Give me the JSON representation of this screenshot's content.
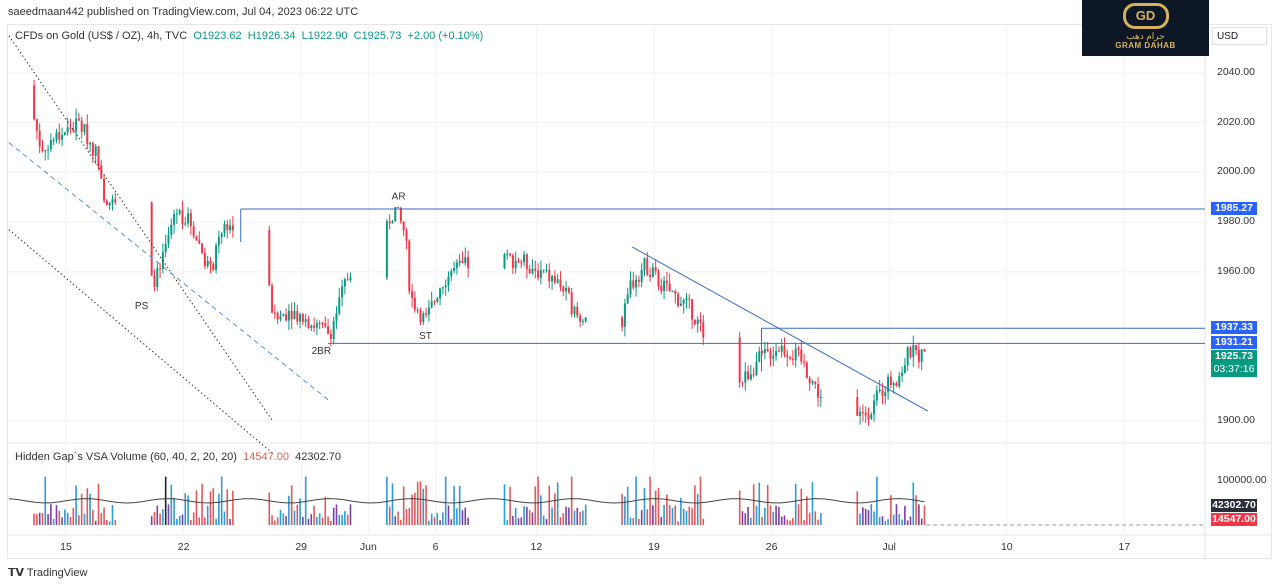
{
  "header": {
    "publisher": "saeedmaan442 published on TradingView.com, Jul 04, 2023 06:22 UTC"
  },
  "legend": {
    "symbol": "CFDs on Gold (US$ / OZ), 4h, TVC",
    "open": "O1923.62",
    "high": "H1926.34",
    "low": "L1922.90",
    "close": "C1925.73",
    "change": "+2.00 (+0.10%)"
  },
  "volume_legend": {
    "name": "Hidden Gap`s VSA Volume (60, 40, 2, 20, 20)",
    "val1": "14547.00",
    "val2": "42302.70"
  },
  "logo": {
    "arabic": "جرام دهب",
    "english": "GRAM DAHAB",
    "mark": "GD"
  },
  "scale": {
    "currency": "USD"
  },
  "colors": {
    "up": "#089981",
    "down": "#f23645",
    "line": "#2962ff",
    "vol_up": "#2e9bd6",
    "vol_down": "#e05a5a",
    "vol_purple": "#7b3fa0"
  },
  "footer": {
    "brand": "TradingView",
    "brand_icon": "tradingview-logo-icon"
  },
  "chart_data": {
    "type": "candlestick",
    "ylim": [
      1886,
      2046
    ],
    "y_ticks": [
      "2040.00",
      "2020.00",
      "2000.00",
      "1980.00",
      "1960.00",
      "1900.00"
    ],
    "y_tick_values": [
      2040,
      2020,
      2000,
      1980,
      1960,
      1900
    ],
    "x_ticks": [
      {
        "label": "15",
        "day": 0
      },
      {
        "label": "22",
        "day": 7
      },
      {
        "label": "29",
        "day": 14
      },
      {
        "label": "Jun",
        "day": 18
      },
      {
        "label": "6",
        "day": 22
      },
      {
        "label": "12",
        "day": 28
      },
      {
        "label": "19",
        "day": 35
      },
      {
        "label": "26",
        "day": 42
      },
      {
        "label": "Jul",
        "day": 49
      },
      {
        "label": "10",
        "day": 56
      },
      {
        "label": "17",
        "day": 63
      }
    ],
    "xlim_days": [
      -3.4,
      69
    ],
    "price_path": [
      [
        -3.4,
        2035
      ],
      [
        -2.2,
        2030
      ],
      [
        -1.5,
        2010
      ],
      [
        -0.4,
        2015
      ],
      [
        0.8,
        2020
      ],
      [
        2,
        2005
      ],
      [
        2.3,
        1990
      ],
      [
        3.2,
        1985
      ],
      [
        4.7,
        1975
      ],
      [
        5,
        1955
      ],
      [
        5.6,
        1960
      ],
      [
        6.5,
        1985
      ],
      [
        7.4,
        1980
      ],
      [
        8.6,
        1960
      ],
      [
        9.5,
        1980
      ],
      [
        10.4,
        1975
      ],
      [
        11,
        1955
      ],
      [
        11.9,
        1960
      ],
      [
        12.4,
        1940
      ],
      [
        13.3,
        1945
      ],
      [
        14.5,
        1940
      ],
      [
        15.7,
        1935
      ],
      [
        16.6,
        1955
      ],
      [
        17.5,
        1970
      ],
      [
        18.7,
        1975
      ],
      [
        19.6,
        1985
      ],
      [
        20.2,
        1975
      ],
      [
        20.5,
        1950
      ],
      [
        21.4,
        1940
      ],
      [
        22.3,
        1955
      ],
      [
        22.9,
        1960
      ],
      [
        24.6,
        1965
      ],
      [
        25.2,
        1940
      ],
      [
        25.8,
        1965
      ],
      [
        27,
        1965
      ],
      [
        28.2,
        1960
      ],
      [
        29.4,
        1955
      ],
      [
        30.6,
        1940
      ],
      [
        31.8,
        1955
      ],
      [
        32.4,
        1935
      ],
      [
        33,
        1935
      ],
      [
        33.6,
        1955
      ],
      [
        34.5,
        1963
      ],
      [
        35.4,
        1955
      ],
      [
        37.2,
        1945
      ],
      [
        37.7,
        1938
      ],
      [
        38.9,
        1930
      ],
      [
        40.1,
        1915
      ],
      [
        41.3,
        1925
      ],
      [
        42.5,
        1930
      ],
      [
        43.7,
        1925
      ],
      [
        44.9,
        1910
      ],
      [
        46.1,
        1905
      ],
      [
        47,
        1900
      ],
      [
        47.9,
        1905
      ],
      [
        48.8,
        1915
      ],
      [
        49.6,
        1918
      ],
      [
        50.2,
        1928
      ],
      [
        51.1,
        1926
      ]
    ],
    "current": {
      "price": "1925.73",
      "countdown": "03:37:16"
    },
    "horizontal_levels": [
      {
        "price": 1985.27,
        "label": "1985.27",
        "from_day": 10.4
      },
      {
        "price": 1937.33,
        "label": "1937.33",
        "from_day": 41.4
      },
      {
        "price": 1931.21,
        "label": "1931.21",
        "from_day": 15.6
      }
    ],
    "trendline": {
      "from": [
        33.7,
        1970
      ],
      "to": [
        51.3,
        1904
      ]
    },
    "channel": [
      {
        "style": "dotted",
        "from": [
          -3.4,
          2055
        ],
        "to": [
          12.3,
          1900
        ],
        "end_price": 1887
      },
      {
        "style": "dashed",
        "from": [
          -3.4,
          2012
        ],
        "to": [
          15.7,
          1908
        ]
      },
      {
        "style": "dotted",
        "from": [
          -3.4,
          1977
        ],
        "to": [
          12.3,
          1887
        ]
      }
    ],
    "annotations": [
      {
        "text": "AR",
        "day": 19.8,
        "price": 1989
      },
      {
        "text": "PS",
        "day": 4.5,
        "price": 1945
      },
      {
        "text": "2BR",
        "day": 15.2,
        "price": 1927
      },
      {
        "text": "ST",
        "day": 21.4,
        "price": 1933
      }
    ],
    "volume": {
      "ylim": [
        0,
        120000
      ],
      "tick": "100000.00",
      "tick_value": 100000,
      "ma_label": "42302.70",
      "last_label": "14547.00"
    }
  }
}
